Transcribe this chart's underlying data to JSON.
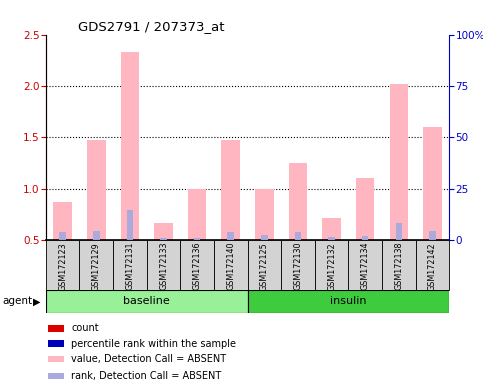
{
  "title": "GDS2791 / 207373_at",
  "samples": [
    "GSM172123",
    "GSM172129",
    "GSM172131",
    "GSM172133",
    "GSM172136",
    "GSM172140",
    "GSM172125",
    "GSM172130",
    "GSM172132",
    "GSM172134",
    "GSM172138",
    "GSM172142"
  ],
  "pink_bar_heights": [
    0.87,
    1.47,
    2.33,
    0.67,
    1.0,
    1.47,
    1.0,
    1.25,
    0.71,
    1.1,
    2.02,
    1.6
  ],
  "blue_bar_heights": [
    0.58,
    0.59,
    0.79,
    0.52,
    0.52,
    0.58,
    0.55,
    0.58,
    0.53,
    0.54,
    0.67,
    0.59
  ],
  "ylim_left": [
    0.5,
    2.5
  ],
  "ylim_right": [
    0,
    100
  ],
  "yticks_left": [
    0.5,
    1.0,
    1.5,
    2.0,
    2.5
  ],
  "yticks_right": [
    0,
    25,
    50,
    75,
    100
  ],
  "ytick_labels_right": [
    "0",
    "25",
    "50",
    "75",
    "100%"
  ],
  "baseline_color": "#98F098",
  "insulin_color": "#3ECC3E",
  "sample_bg_color": "#d3d3d3",
  "pink_color": "#FFB6C1",
  "blue_color": "#AAAADD",
  "red_color": "#DD0000",
  "dark_blue_color": "#0000BB",
  "left_axis_color": "#CC0000",
  "right_axis_color": "#0000CC",
  "agent_label": "agent",
  "group_labels": [
    "baseline",
    "insulin"
  ],
  "baseline_count": 6,
  "legend_items": [
    {
      "color": "#DD0000",
      "label": "count"
    },
    {
      "color": "#0000BB",
      "label": "percentile rank within the sample"
    },
    {
      "color": "#FFB6C1",
      "label": "value, Detection Call = ABSENT"
    },
    {
      "color": "#AAAADD",
      "label": "rank, Detection Call = ABSENT"
    }
  ]
}
